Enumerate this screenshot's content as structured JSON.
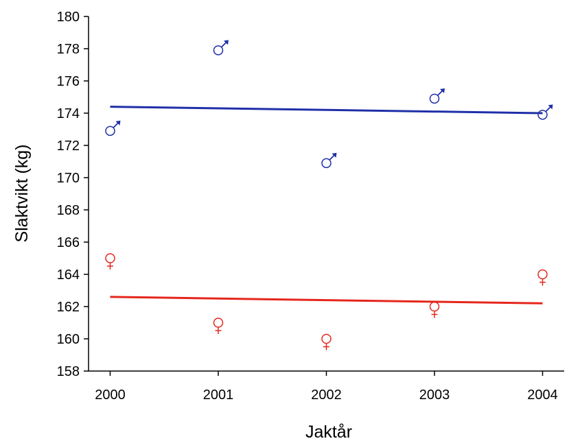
{
  "chart_data": {
    "type": "scatter",
    "title": "",
    "xlabel": "Jaktår",
    "ylabel": "Slaktvikt (kg)",
    "xlim": [
      1999.8,
      2004.2
    ],
    "ylim": [
      158,
      180
    ],
    "x_ticks": [
      2000,
      2001,
      2002,
      2003,
      2004
    ],
    "y_ticks": [
      158,
      160,
      162,
      164,
      166,
      168,
      170,
      172,
      174,
      176,
      178,
      180
    ],
    "grid": false,
    "legend": "none",
    "series": [
      {
        "marker": "male-symbol",
        "color": "#1f2fa8",
        "points": [
          {
            "x": 2000,
            "y": 172.9
          },
          {
            "x": 2001,
            "y": 177.9
          },
          {
            "x": 2002,
            "y": 170.9
          },
          {
            "x": 2003,
            "y": 174.9
          },
          {
            "x": 2004,
            "y": 173.9
          }
        ],
        "trend": {
          "x": [
            2000,
            2004
          ],
          "y": [
            174.4,
            174.0
          ]
        }
      },
      {
        "marker": "female-symbol",
        "color": "#e5261c",
        "points": [
          {
            "x": 2000,
            "y": 165.0
          },
          {
            "x": 2001,
            "y": 161.0
          },
          {
            "x": 2002,
            "y": 160.0
          },
          {
            "x": 2003,
            "y": 162.0
          },
          {
            "x": 2004,
            "y": 164.0
          }
        ],
        "trend": {
          "x": [
            2000,
            2004
          ],
          "y": [
            162.6,
            162.2
          ]
        }
      }
    ]
  }
}
